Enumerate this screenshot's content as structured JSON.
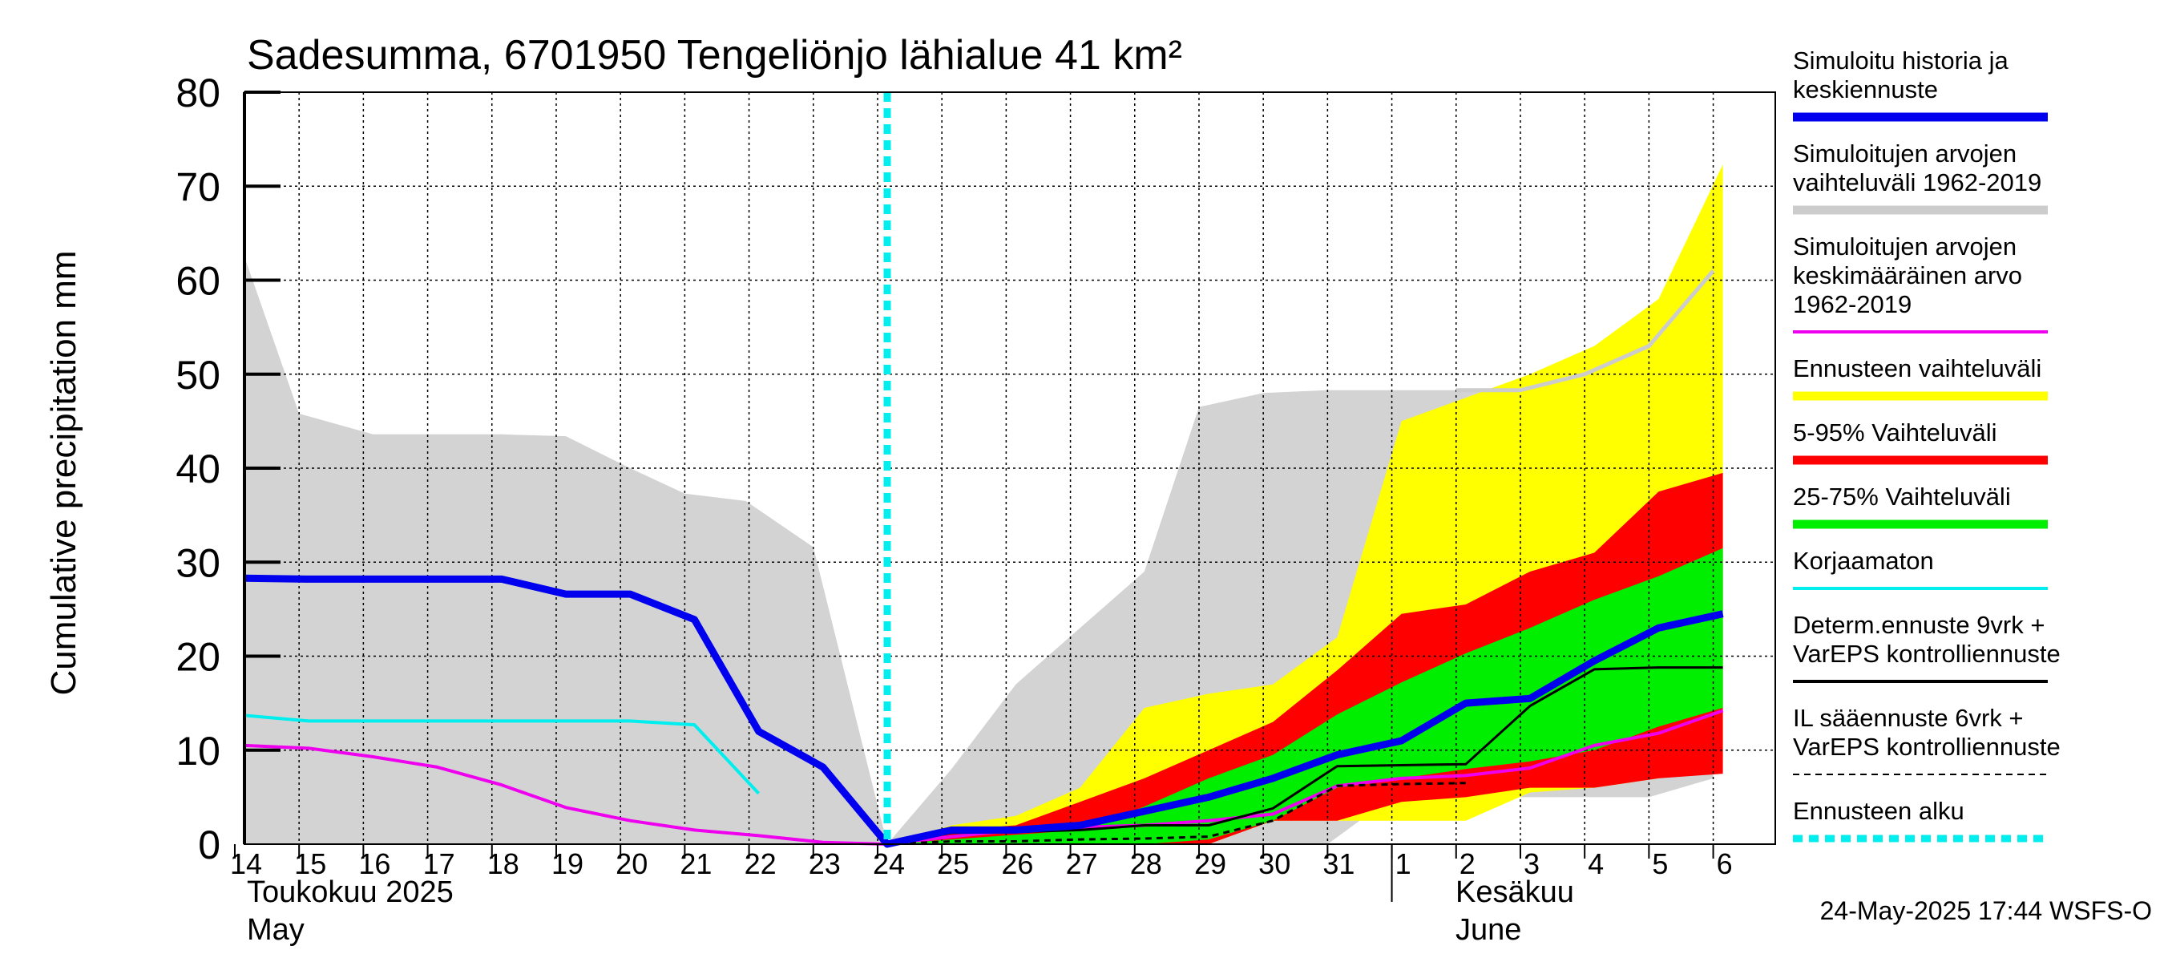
{
  "chart_data": {
    "type": "area",
    "title": "Sadesumma, 6701950 Tengeliönjo lähialue 41 km²",
    "ylabel": "Cumulative precipitation   mm",
    "ylim": [
      0,
      80
    ],
    "yticks": [
      0,
      10,
      20,
      30,
      40,
      50,
      60,
      70,
      80
    ],
    "x_tick_labels": [
      "14",
      "15",
      "16",
      "17",
      "18",
      "19",
      "20",
      "21",
      "22",
      "23",
      "24",
      "25",
      "26",
      "27",
      "28",
      "29",
      "30",
      "31",
      "1",
      "2",
      "3",
      "4",
      "5",
      "6"
    ],
    "month_labels": {
      "may_fi": "Toukokuu  2025",
      "may_en": "May",
      "june_fi": "Kesäkuu",
      "june_en": "June"
    },
    "timestamp": "24-May-2025 17:44 WSFS-O",
    "forecast_start_index": 10,
    "hist_range": {
      "x": [
        0,
        0.85,
        2,
        3,
        4,
        5,
        6,
        6.85,
        7.8,
        8.85,
        10,
        11,
        12,
        13,
        14,
        14.85,
        15.85,
        16.85,
        17.85,
        18.85,
        19.85,
        20.85,
        21.85,
        22.85
      ],
      "high": [
        62.5,
        45.8,
        43.6,
        43.6,
        43.6,
        43.4,
        40.0,
        37.3,
        36.5,
        31.6,
        0,
        8,
        17,
        23,
        29,
        46.5,
        48,
        48.3,
        48.3,
        48.3,
        48.3,
        48.3,
        48.3,
        48.3
      ],
      "low": [
        0,
        0,
        0,
        0,
        0,
        0,
        0,
        0,
        0,
        0,
        0,
        0,
        0,
        0,
        0,
        0,
        0,
        0,
        5,
        5,
        5,
        5,
        5,
        7
      ]
    },
    "series": [
      {
        "name": "Simuloitu historia ja keskiennuste",
        "color": "#0000ee",
        "x": [
          0,
          1,
          2,
          3,
          4,
          5,
          6,
          7,
          8,
          9,
          10,
          11,
          12,
          13,
          14,
          15,
          16,
          17,
          18,
          19,
          20,
          21,
          22,
          23
        ],
        "values": [
          28.3,
          28.2,
          28.2,
          28.2,
          28.2,
          26.6,
          26.6,
          23.9,
          12.0,
          8.2,
          0,
          1.5,
          1.5,
          2.0,
          3.5,
          5.0,
          7.0,
          9.5,
          11.0,
          15.0,
          15.5,
          19.5,
          23.0,
          24.5
        ]
      },
      {
        "name": "Simuloitujen arvojen vaihteluväli 1962-2019",
        "color": "#cccccc",
        "x": [
          18.85,
          19.85,
          20.85,
          21.85,
          22.85
        ],
        "values": [
          48.3,
          48.3,
          50.0,
          53.0,
          61.0
        ]
      },
      {
        "name": "Simuloitujen arvojen keskimääräinen arvo 1962-2019",
        "color": "#ee00ee",
        "x": [
          0,
          1,
          2,
          3,
          4,
          5,
          6,
          7,
          8,
          9,
          10,
          11,
          12,
          13,
          14,
          15,
          16,
          17,
          18,
          19,
          20,
          21,
          22,
          23
        ],
        "values": [
          10.5,
          10.2,
          9.3,
          8.2,
          6.3,
          3.9,
          2.5,
          1.5,
          0.9,
          0.2,
          0,
          0.8,
          1.5,
          1.8,
          2.0,
          2.5,
          3.2,
          6.2,
          7.0,
          7.3,
          8.1,
          10.5,
          11.8,
          14.2
        ]
      },
      {
        "name": "Korjaamaton",
        "color": "#00eeee",
        "x": [
          0,
          1,
          2,
          3,
          4,
          5,
          6,
          7,
          8
        ],
        "values": [
          13.7,
          13.1,
          13.1,
          13.1,
          13.1,
          13.1,
          13.1,
          12.7,
          5.4
        ]
      },
      {
        "name": "Determ.ennuste 9vrk + VarEPS kontrolliennuste",
        "color": "#000000",
        "x": [
          10,
          11,
          12,
          13,
          14,
          15,
          16,
          17,
          18,
          19,
          20,
          21,
          22,
          23
        ],
        "values": [
          0,
          1.2,
          1.3,
          1.5,
          2.0,
          2.0,
          3.8,
          8.3,
          8.4,
          8.5,
          14.7,
          18.6,
          18.8,
          18.8
        ]
      },
      {
        "name": "IL sääennuste 6vrk  +  VarEPS kontrolliennuste",
        "color": "#000000",
        "x": [
          10,
          11,
          12,
          13,
          14,
          15,
          16,
          17,
          18,
          19
        ],
        "values": [
          0,
          0.3,
          0.3,
          0.5,
          0.6,
          0.8,
          2.5,
          6.2,
          6.4,
          6.5
        ]
      }
    ],
    "bands": [
      {
        "name": "Ennusteen vaihteluväli",
        "color": "#ffff00",
        "x": [
          10,
          11,
          12,
          13,
          14,
          15,
          16,
          17,
          18,
          19,
          20,
          21,
          22,
          23
        ],
        "high": [
          0,
          2,
          3,
          6,
          14.5,
          16,
          17,
          22,
          45,
          47.5,
          50,
          53,
          58,
          72.3
        ],
        "low": [
          0,
          0,
          0,
          0,
          0,
          0,
          2.5,
          2.5,
          2.5,
          2.5,
          5.5,
          6,
          7,
          9
        ]
      },
      {
        "name": "5-95% Vaihteluväli",
        "color": "#ff0000",
        "x": [
          10,
          11,
          12,
          13,
          14,
          15,
          16,
          17,
          18,
          19,
          20,
          21,
          22,
          23
        ],
        "high": [
          0,
          1.5,
          2,
          4.5,
          7,
          10,
          13,
          18.5,
          24.5,
          25.5,
          29,
          31,
          37.5,
          39.5
        ],
        "low": [
          0,
          0,
          0,
          0,
          0,
          0,
          2.5,
          2.5,
          4.5,
          5,
          6,
          6,
          7,
          7.5
        ]
      },
      {
        "name": "25-75% Vaihteluväli",
        "color": "#00ee00",
        "x": [
          10,
          11,
          12,
          13,
          14,
          15,
          16,
          17,
          18,
          19,
          20,
          21,
          22,
          23
        ],
        "high": [
          0,
          0.5,
          1,
          1.5,
          4,
          7,
          9.5,
          13.8,
          17.2,
          20.3,
          23,
          26,
          28.5,
          31.5
        ],
        "low": [
          0,
          0,
          0,
          0,
          0,
          0.5,
          2.5,
          6,
          7,
          8,
          8.8,
          10,
          12.5,
          14.5
        ]
      }
    ],
    "legend": [
      {
        "label": "Simuloitu historia ja keskiennuste",
        "color": "#0000ee",
        "style": "thick"
      },
      {
        "label": "Simuloitujen arvojen vaihteluväli 1962-2019",
        "color": "#cccccc",
        "style": "thick"
      },
      {
        "label": "Simuloitujen arvojen keskimääräinen arvo 1962-2019",
        "color": "#ee00ee",
        "style": "thin"
      },
      {
        "label": "Ennusteen vaihteluväli",
        "color": "#ffff00",
        "style": "thick"
      },
      {
        "label": "5-95% Vaihteluväli",
        "color": "#ff0000",
        "style": "thick"
      },
      {
        "label": "25-75% Vaihteluväli",
        "color": "#00ee00",
        "style": "thick"
      },
      {
        "label": "Korjaamaton",
        "color": "#00eeee",
        "style": "thin"
      },
      {
        "label": "Determ.ennuste 9vrk + VarEPS kontrolliennuste",
        "color": "#000000",
        "style": "thin"
      },
      {
        "label": "IL sääennuste 6vrk  +  VarEPS kontrolliennuste",
        "color": "#000000",
        "style": "dashed"
      },
      {
        "label": "Ennusteen alku",
        "color": "#00eeee",
        "style": "dotted"
      }
    ]
  }
}
